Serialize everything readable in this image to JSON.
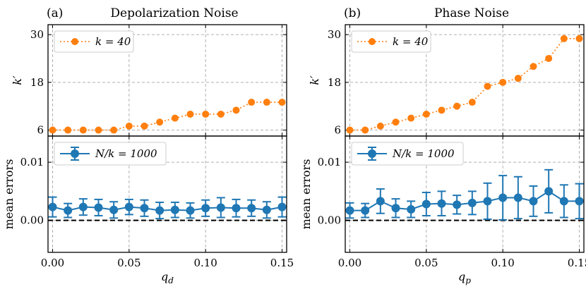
{
  "chart_data": [
    {
      "type": "line",
      "panel_label": "(a)",
      "title": "Depolarization Noise",
      "xlabel": "q",
      "xlabel_sub": "d",
      "x": [
        0.0,
        0.01,
        0.02,
        0.03,
        0.04,
        0.05,
        0.06,
        0.07,
        0.08,
        0.09,
        0.1,
        0.11,
        0.12,
        0.13,
        0.14,
        0.15
      ],
      "xlim": [
        -0.003,
        0.153
      ],
      "xticks": [
        0.0,
        0.05,
        0.1,
        0.15
      ],
      "xtick_labels": [
        "0.00",
        "0.05",
        "0.10",
        "0.15"
      ],
      "top": {
        "ylabel": "k′",
        "ylim": [
          4.5,
          32.5
        ],
        "yticks": [
          6,
          18,
          30
        ],
        "ytick_labels": [
          "6",
          "18",
          "30"
        ],
        "series": [
          {
            "name": "k = 40",
            "color": "#ff7f0e",
            "values": [
              6,
              6,
              6,
              6,
              6,
              7,
              7,
              8,
              9,
              10,
              10,
              10,
              11,
              13,
              13,
              13
            ]
          }
        ]
      },
      "bottom": {
        "ylabel": "mean errors",
        "ylim": [
          -0.0055,
          0.0145
        ],
        "yticks": [
          0.0,
          0.01
        ],
        "ytick_labels": [
          "0.00",
          "0.01"
        ],
        "reference_line": 0,
        "series": [
          {
            "name": "N/k = 1000",
            "color": "#1f77b4",
            "values": [
              0.0023,
              0.0017,
              0.0023,
              0.0022,
              0.0018,
              0.0023,
              0.0021,
              0.0017,
              0.0018,
              0.0017,
              0.0021,
              0.0022,
              0.0021,
              0.0021,
              0.0018,
              0.0023
            ],
            "errors": [
              0.0017,
              0.0012,
              0.0014,
              0.0014,
              0.0014,
              0.0013,
              0.0014,
              0.0014,
              0.0013,
              0.0013,
              0.0014,
              0.0017,
              0.0015,
              0.0014,
              0.0014,
              0.0017
            ]
          }
        ]
      }
    },
    {
      "type": "line",
      "panel_label": "(b)",
      "title": "Phase Noise",
      "xlabel": "q",
      "xlabel_sub": "p",
      "x": [
        0.0,
        0.01,
        0.02,
        0.03,
        0.04,
        0.05,
        0.06,
        0.07,
        0.08,
        0.09,
        0.1,
        0.11,
        0.12,
        0.13,
        0.14,
        0.15
      ],
      "xlim": [
        -0.003,
        0.153
      ],
      "xticks": [
        0.0,
        0.05,
        0.1,
        0.15
      ],
      "xtick_labels": [
        "0.00",
        "0.05",
        "0.10",
        "0.15"
      ],
      "top": {
        "ylabel": "k′",
        "ylim": [
          4.5,
          32.5
        ],
        "yticks": [
          6,
          18,
          30
        ],
        "ytick_labels": [
          "6",
          "18",
          "30"
        ],
        "series": [
          {
            "name": "k = 40",
            "color": "#ff7f0e",
            "values": [
              6,
              6,
              7,
              8,
              9,
              10,
              11,
              12,
              13,
              17,
              18,
              19,
              22,
              24,
              29,
              29
            ]
          }
        ]
      },
      "bottom": {
        "ylabel": "mean errors",
        "ylim": [
          -0.0055,
          0.0145
        ],
        "yticks": [
          0.0,
          0.01
        ],
        "ytick_labels": [
          "0.00",
          "0.01"
        ],
        "reference_line": 0,
        "series": [
          {
            "name": "N/k = 1000",
            "color": "#1f77b4",
            "values": [
              0.0017,
              0.0017,
              0.0033,
              0.0021,
              0.0019,
              0.0028,
              0.0029,
              0.0027,
              0.003,
              0.0033,
              0.0039,
              0.0039,
              0.0033,
              0.005,
              0.0033,
              0.0033
            ],
            "errors": [
              0.0013,
              0.0012,
              0.0021,
              0.0016,
              0.0014,
              0.002,
              0.0021,
              0.0016,
              0.002,
              0.0031,
              0.0038,
              0.0036,
              0.0026,
              0.0037,
              0.0028,
              0.003
            ]
          }
        ]
      }
    }
  ]
}
